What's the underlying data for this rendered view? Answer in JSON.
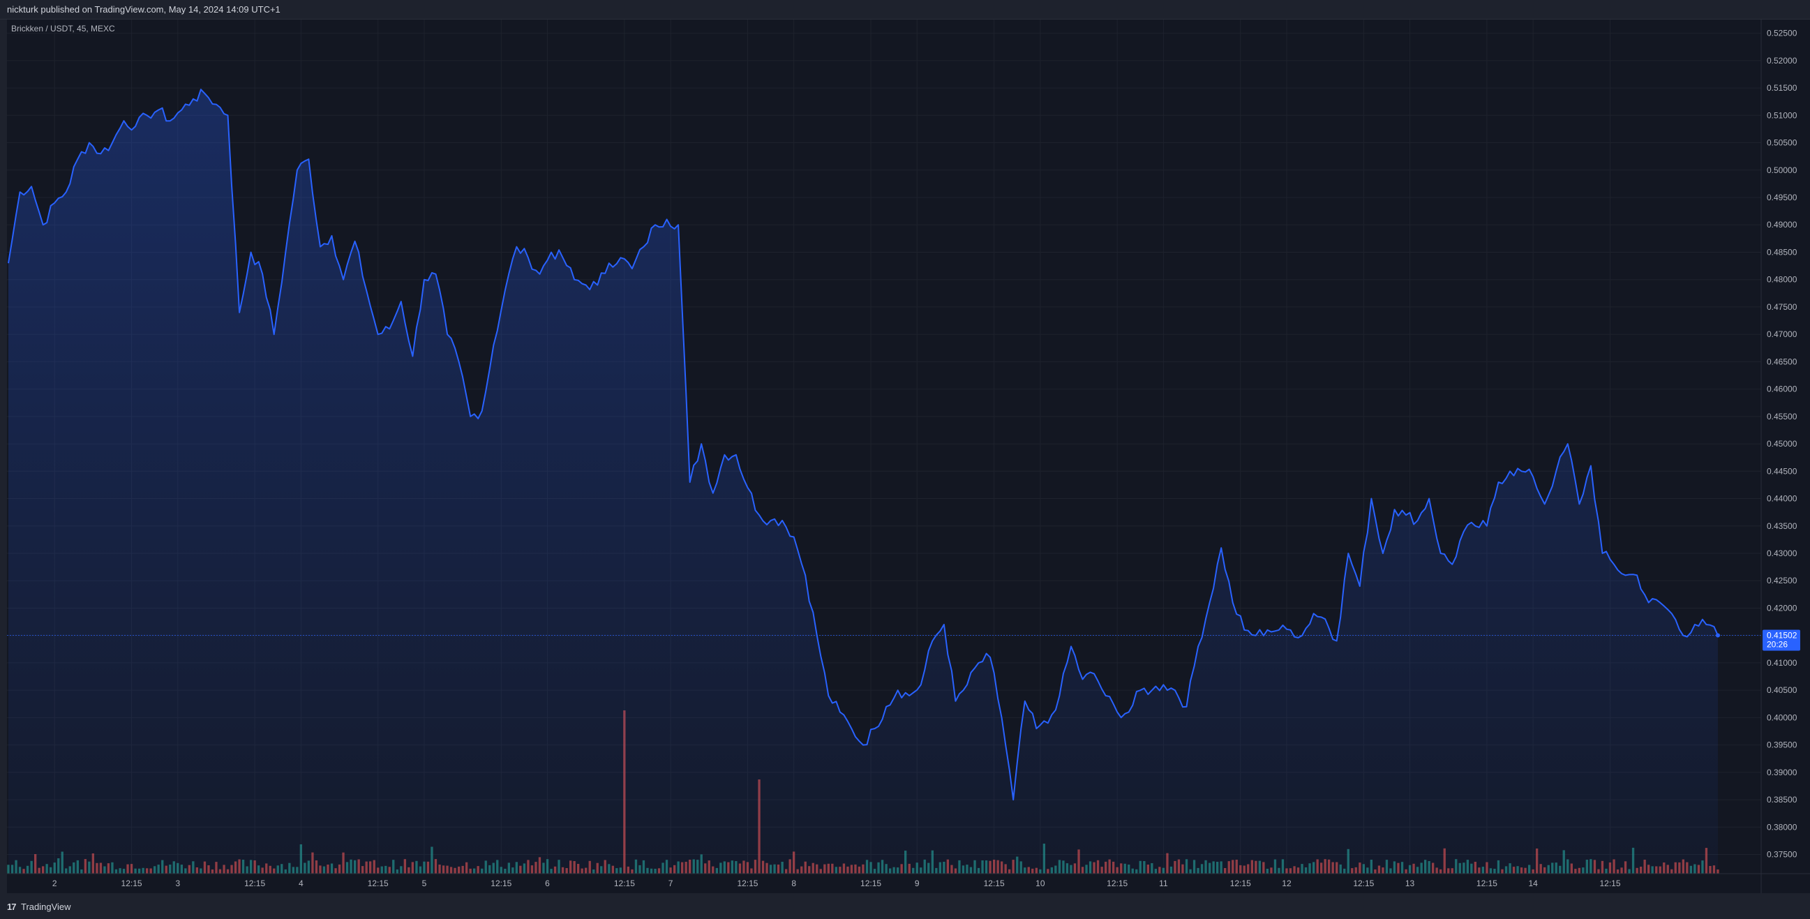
{
  "header": {
    "text": "nickturk published on TradingView.com, May 14, 2024 14:09 UTC+1"
  },
  "footer": {
    "logo": "17",
    "brand": "TradingView"
  },
  "colors": {
    "line": "#2962ff",
    "volume_up": "#26a69a",
    "volume_down": "#ef5350",
    "last_price_badge": "#2962ff"
  },
  "chart_data": {
    "type": "area",
    "legend": "Brickken / USDT, 45, MEXC",
    "y_range": [
      0.3715,
      0.5275
    ],
    "y_ticks": [
      "0.52500",
      "0.52000",
      "0.51500",
      "0.51000",
      "0.50500",
      "0.50000",
      "0.49500",
      "0.49000",
      "0.48500",
      "0.48000",
      "0.47500",
      "0.47000",
      "0.46500",
      "0.46000",
      "0.45500",
      "0.45000",
      "0.44500",
      "0.44000",
      "0.43500",
      "0.43000",
      "0.42500",
      "0.42000",
      "0.41500",
      "0.41000",
      "0.40500",
      "0.40000",
      "0.39500",
      "0.39000",
      "0.38500",
      "0.38000",
      "0.37500"
    ],
    "x_ticks": [
      "2",
      "12:15",
      "3",
      "12:15",
      "4",
      "12:15",
      "5",
      "12:15",
      "6",
      "12:15",
      "7",
      "12:15",
      "8",
      "12:15",
      "9",
      "12:15",
      "10",
      "12:15",
      "11",
      "12:15",
      "12",
      "12:15",
      "13",
      "12:15",
      "14",
      "12:15"
    ],
    "x_tick_index": [
      12,
      32,
      44,
      64,
      76,
      96,
      108,
      128,
      140,
      160,
      172,
      192,
      204,
      224,
      236,
      256,
      268,
      288,
      300,
      320,
      332,
      352,
      364,
      384,
      396,
      416
    ],
    "last_price": {
      "value": "0.41502",
      "countdown": "20:26"
    },
    "grid": true,
    "anchors": [
      [
        0,
        0.483
      ],
      [
        1,
        0.496
      ],
      [
        2,
        0.497
      ],
      [
        3,
        0.49
      ],
      [
        4,
        0.494
      ],
      [
        5,
        0.496
      ],
      [
        6,
        0.502
      ],
      [
        7,
        0.505
      ],
      [
        8,
        0.503
      ],
      [
        9,
        0.505
      ],
      [
        10,
        0.509
      ],
      [
        11,
        0.508
      ],
      [
        12,
        0.51
      ],
      [
        13,
        0.511
      ],
      [
        14,
        0.509
      ],
      [
        15,
        0.511
      ],
      [
        16,
        0.513
      ],
      [
        17,
        0.514
      ],
      [
        18,
        0.512
      ],
      [
        19,
        0.51
      ],
      [
        20,
        0.474
      ],
      [
        21,
        0.485
      ],
      [
        22,
        0.481
      ],
      [
        23,
        0.47
      ],
      [
        24,
        0.485
      ],
      [
        25,
        0.5
      ],
      [
        26,
        0.502
      ],
      [
        27,
        0.486
      ],
      [
        28,
        0.488
      ],
      [
        29,
        0.48
      ],
      [
        30,
        0.487
      ],
      [
        31,
        0.478
      ],
      [
        32,
        0.47
      ],
      [
        33,
        0.471
      ],
      [
        34,
        0.476
      ],
      [
        35,
        0.466
      ],
      [
        36,
        0.48
      ],
      [
        37,
        0.481
      ],
      [
        38,
        0.47
      ],
      [
        39,
        0.465
      ],
      [
        40,
        0.455
      ],
      [
        41,
        0.456
      ],
      [
        42,
        0.468
      ],
      [
        43,
        0.478
      ],
      [
        44,
        0.486
      ],
      [
        45,
        0.484
      ],
      [
        46,
        0.481
      ],
      [
        47,
        0.485
      ],
      [
        48,
        0.484
      ],
      [
        49,
        0.48
      ],
      [
        50,
        0.479
      ],
      [
        51,
        0.479
      ],
      [
        52,
        0.483
      ],
      [
        53,
        0.484
      ],
      [
        54,
        0.482
      ],
      [
        55,
        0.486
      ],
      [
        56,
        0.49
      ],
      [
        57,
        0.491
      ],
      [
        58,
        0.49
      ],
      [
        59,
        0.443
      ],
      [
        60,
        0.45
      ],
      [
        61,
        0.441
      ],
      [
        62,
        0.448
      ],
      [
        63,
        0.448
      ],
      [
        64,
        0.442
      ],
      [
        65,
        0.437
      ],
      [
        66,
        0.436
      ],
      [
        67,
        0.436
      ],
      [
        68,
        0.433
      ],
      [
        69,
        0.426
      ],
      [
        70,
        0.415
      ],
      [
        71,
        0.404
      ],
      [
        72,
        0.401
      ],
      [
        73,
        0.398
      ],
      [
        74,
        0.395
      ],
      [
        75,
        0.398
      ],
      [
        76,
        0.402
      ],
      [
        77,
        0.405
      ],
      [
        78,
        0.404
      ],
      [
        79,
        0.406
      ],
      [
        80,
        0.414
      ],
      [
        81,
        0.417
      ],
      [
        82,
        0.403
      ],
      [
        83,
        0.406
      ],
      [
        84,
        0.41
      ],
      [
        85,
        0.411
      ],
      [
        86,
        0.4
      ],
      [
        87,
        0.385
      ],
      [
        88,
        0.403
      ],
      [
        89,
        0.398
      ],
      [
        90,
        0.399
      ],
      [
        91,
        0.404
      ],
      [
        92,
        0.413
      ],
      [
        93,
        0.407
      ],
      [
        94,
        0.408
      ],
      [
        95,
        0.404
      ],
      [
        96,
        0.401
      ],
      [
        97,
        0.401
      ],
      [
        98,
        0.405
      ],
      [
        99,
        0.405
      ],
      [
        100,
        0.406
      ],
      [
        101,
        0.405
      ],
      [
        102,
        0.402
      ],
      [
        103,
        0.413
      ],
      [
        104,
        0.421
      ],
      [
        105,
        0.431
      ],
      [
        106,
        0.421
      ],
      [
        107,
        0.416
      ],
      [
        108,
        0.415
      ],
      [
        109,
        0.416
      ],
      [
        110,
        0.416
      ],
      [
        111,
        0.416
      ],
      [
        112,
        0.415
      ],
      [
        113,
        0.419
      ],
      [
        114,
        0.418
      ],
      [
        115,
        0.414
      ],
      [
        116,
        0.43
      ],
      [
        117,
        0.424
      ],
      [
        118,
        0.44
      ],
      [
        119,
        0.43
      ],
      [
        120,
        0.438
      ],
      [
        121,
        0.437
      ],
      [
        122,
        0.436
      ],
      [
        123,
        0.44
      ],
      [
        124,
        0.43
      ],
      [
        125,
        0.428
      ],
      [
        126,
        0.434
      ],
      [
        127,
        0.435
      ],
      [
        128,
        0.435
      ],
      [
        129,
        0.443
      ],
      [
        130,
        0.445
      ],
      [
        131,
        0.445
      ],
      [
        132,
        0.444
      ],
      [
        133,
        0.439
      ],
      [
        134,
        0.445
      ],
      [
        135,
        0.45
      ],
      [
        136,
        0.439
      ],
      [
        137,
        0.446
      ],
      [
        138,
        0.43
      ],
      [
        139,
        0.428
      ],
      [
        140,
        0.426
      ],
      [
        141,
        0.426
      ],
      [
        142,
        0.421
      ],
      [
        143,
        0.421
      ],
      [
        144,
        0.419
      ],
      [
        145,
        0.415
      ],
      [
        146,
        0.417
      ],
      [
        147,
        0.417
      ],
      [
        148,
        0.415
      ]
    ],
    "anchor_scale": 3,
    "volume": {
      "spikes": [
        {
          "index": 76,
          "value": 0.14
        },
        {
          "index": 160,
          "value": 0.78
        },
        {
          "index": 195,
          "value": 0.45
        }
      ]
    }
  }
}
